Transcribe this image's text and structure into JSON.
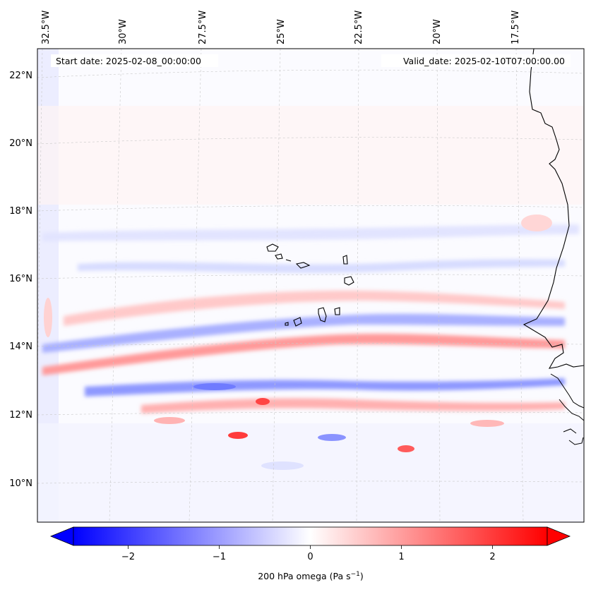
{
  "chart_data": {
    "type": "heatmap",
    "variable": "200 hPa omega",
    "units_prefix": "200 hPa omega (Pa s",
    "units_exp": "−1",
    "units_suffix": ")",
    "start_label": "Start date: 2025-02-08_00:00:00",
    "valid_label": "Valid_date: 2025-02-10T07:00:00.00",
    "lon_ticks": [
      {
        "lon": -32.5,
        "label": "32.5°W"
      },
      {
        "lon": -30.0,
        "label": "30°W"
      },
      {
        "lon": -27.5,
        "label": "27.5°W"
      },
      {
        "lon": -25.0,
        "label": "25°W"
      },
      {
        "lon": -22.5,
        "label": "22.5°W"
      },
      {
        "lon": -20.0,
        "label": "20°W"
      },
      {
        "lon": -17.5,
        "label": "17.5°W"
      }
    ],
    "lat_ticks": [
      {
        "lat": 22,
        "label": "22°N"
      },
      {
        "lat": 20,
        "label": "20°N"
      },
      {
        "lat": 18,
        "label": "18°N"
      },
      {
        "lat": 16,
        "label": "16°N"
      },
      {
        "lat": 14,
        "label": "14°N"
      },
      {
        "lat": 12,
        "label": "12°N"
      },
      {
        "lat": 10,
        "label": "10°N"
      }
    ],
    "lat_range": [
      8.9,
      22.8
    ],
    "lon_range": [
      -32.6,
      -15.6
    ],
    "colorbar": {
      "vmin": -2.6,
      "vmax": 2.6,
      "ticks": [
        {
          "value": -2,
          "label": "−2"
        },
        {
          "value": -1,
          "label": "−1"
        },
        {
          "value": 0,
          "label": "0"
        },
        {
          "value": 1,
          "label": "1"
        },
        {
          "value": 2,
          "label": "2"
        }
      ],
      "cmap": "bwr",
      "extend": "both"
    },
    "features": [
      {
        "name": "blue-band-14N",
        "lat": 14.1,
        "sign": "negative"
      },
      {
        "name": "red-band-13.6N",
        "lat": 13.6,
        "sign": "positive"
      },
      {
        "name": "blue-band-12.8N",
        "lat": 12.8,
        "sign": "negative"
      },
      {
        "name": "blue-band-15N",
        "lat": 15.0,
        "sign": "negative"
      },
      {
        "name": "red-band-15.4N",
        "lat": 15.4,
        "sign": "positive"
      },
      {
        "name": "blue-band-16.4N",
        "lat": 16.4,
        "sign": "negative"
      },
      {
        "name": "blue-band-17.7N",
        "lat": 17.7,
        "sign": "negative"
      }
    ]
  }
}
